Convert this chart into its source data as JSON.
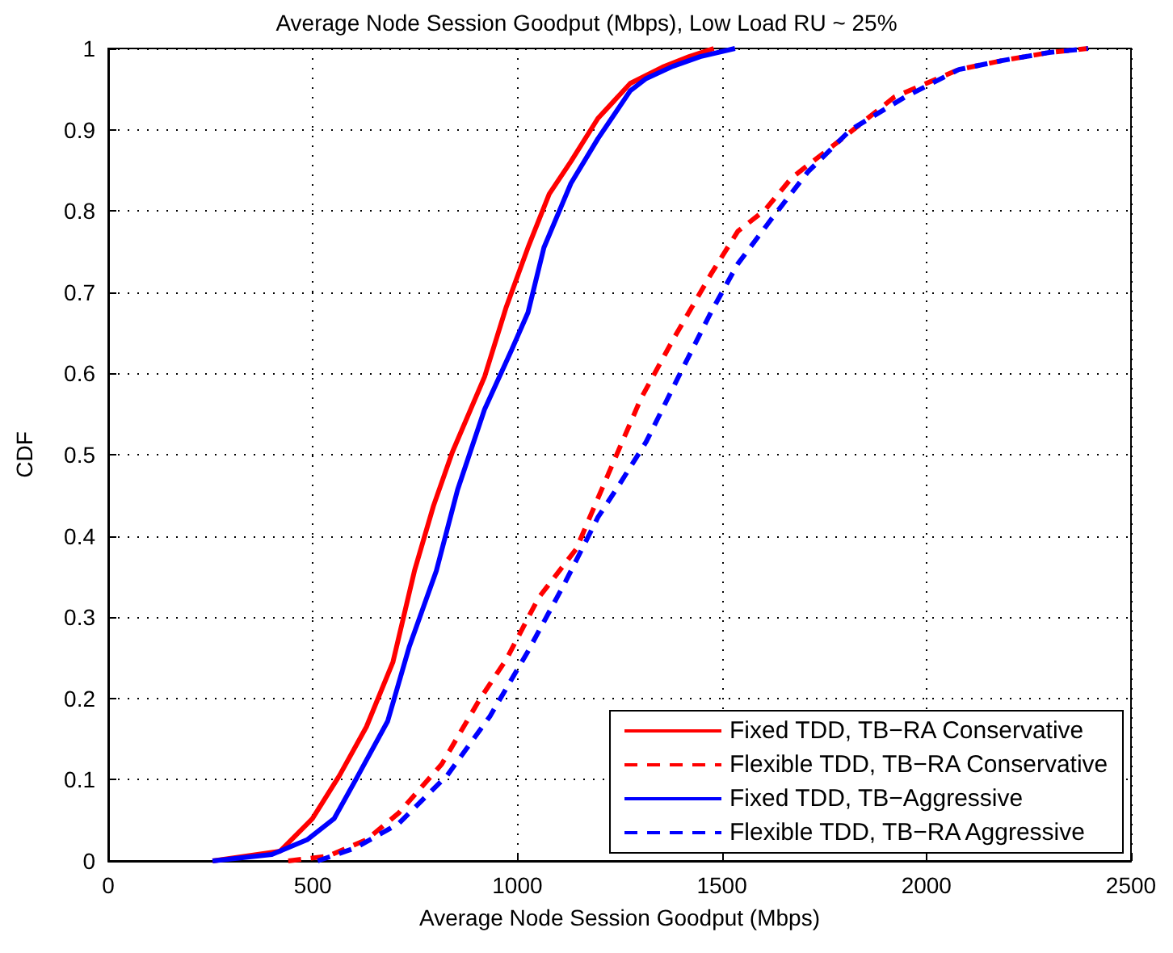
{
  "chart_data": {
    "type": "line",
    "title": "Average Node Session Goodput (Mbps), Low Load RU ~ 25%",
    "xlabel": "Average Node Session Goodput (Mbps)",
    "ylabel": "CDF",
    "xlim": [
      0,
      2500
    ],
    "xticks": [
      0,
      500,
      1000,
      1500,
      2000,
      2500
    ],
    "ylim": [
      0,
      1
    ],
    "yticks": [
      0,
      0.1,
      0.2,
      0.3,
      0.4,
      0.5,
      0.6,
      0.7,
      0.8,
      0.9,
      1
    ],
    "grid": true,
    "legend": "bottom right",
    "marker": "none",
    "series": [
      {
        "name": "Fixed TDD, TB−RA Conservative",
        "color": "#ff0000",
        "line_style": "solid",
        "x": [
          255,
          420,
          499,
          565,
          631,
          696,
          749,
          795,
          841,
          920,
          973,
          1026,
          1078,
          1131,
          1197,
          1276,
          1355,
          1420,
          1480
        ],
        "values": [
          0,
          0.012,
          0.052,
          0.105,
          0.165,
          0.245,
          0.358,
          0.437,
          0.503,
          0.596,
          0.682,
          0.755,
          0.821,
          0.861,
          0.914,
          0.957,
          0.977,
          0.99,
          1
        ]
      },
      {
        "name": "Flexible TDD, TB−RA Conservative",
        "color": "#ff0000",
        "line_style": "dashed",
        "x": [
          440,
          538,
          631,
          710,
          815,
          907,
          973,
          1052,
          1144,
          1223,
          1302,
          1381,
          1473,
          1539,
          1605,
          1671,
          1789,
          1921,
          2079,
          2184,
          2300,
          2395
        ],
        "values": [
          0,
          0.006,
          0.026,
          0.059,
          0.119,
          0.198,
          0.248,
          0.324,
          0.384,
          0.477,
          0.569,
          0.642,
          0.722,
          0.775,
          0.801,
          0.841,
          0.887,
          0.94,
          0.974,
          0.985,
          0.995,
          1
        ]
      },
      {
        "name": "Fixed TDD, TB−Aggressive",
        "color": "#0000ff",
        "line_style": "solid",
        "x": [
          255,
          400,
          486,
          552,
          604,
          683,
          736,
          802,
          854,
          920,
          986,
          1026,
          1065,
          1131,
          1197,
          1276,
          1315,
          1380,
          1447,
          1532
        ],
        "values": [
          0,
          0.008,
          0.026,
          0.052,
          0.099,
          0.172,
          0.264,
          0.357,
          0.457,
          0.556,
          0.629,
          0.675,
          0.755,
          0.834,
          0.889,
          0.948,
          0.963,
          0.978,
          0.99,
          1
        ]
      },
      {
        "name": "Flexible TDD, TB−RA Aggressive",
        "color": "#0000ff",
        "line_style": "dashed",
        "x": [
          512,
          604,
          710,
          828,
          933,
          1026,
          1118,
          1197,
          1249,
          1315,
          1394,
          1473,
          1539,
          1618,
          1710,
          1815,
          1947,
          2079,
          2184,
          2300,
          2395
        ],
        "values": [
          0,
          0.016,
          0.046,
          0.105,
          0.178,
          0.258,
          0.344,
          0.423,
          0.463,
          0.516,
          0.596,
          0.675,
          0.735,
          0.788,
          0.848,
          0.9,
          0.94,
          0.974,
          0.985,
          0.995,
          1
        ]
      }
    ]
  }
}
